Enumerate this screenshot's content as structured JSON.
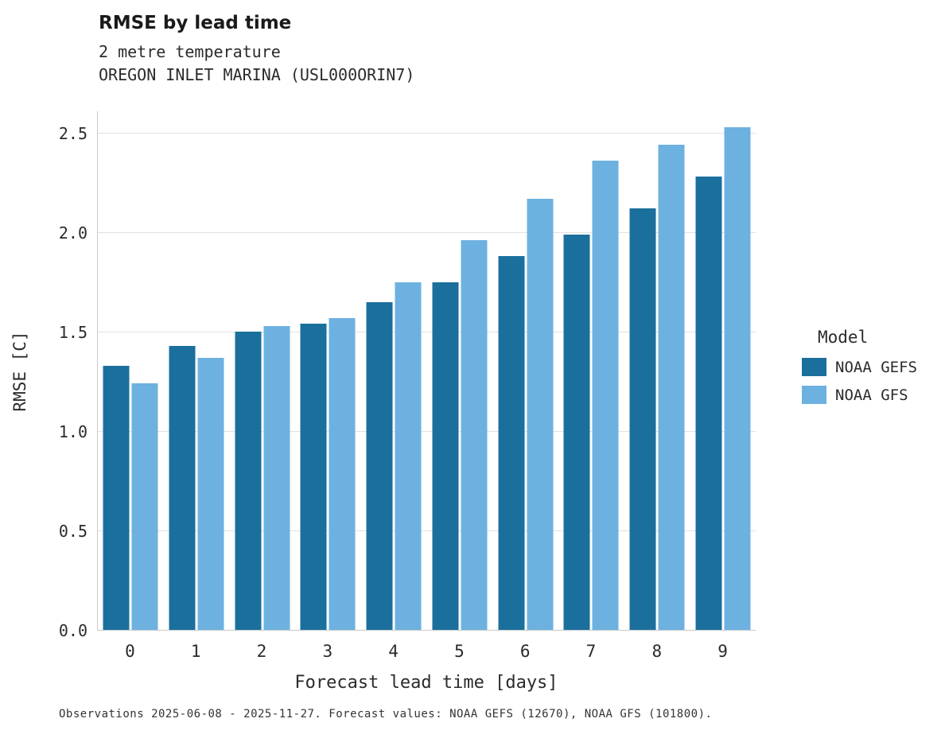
{
  "header": {
    "title": "RMSE by lead time",
    "subtitle1": "2 metre temperature",
    "subtitle2": "OREGON INLET MARINA (USL000ORIN7)"
  },
  "footer": {
    "caption": "Observations 2025-06-08 - 2025-11-27. Forecast values: NOAA GEFS (12670), NOAA GFS (101800)."
  },
  "legend": {
    "title": "Model"
  },
  "colors": {
    "gefs": "#1b6f9c",
    "gfs": "#6db1e0",
    "grid": "#e2e2e2",
    "axis": "#c9c9c9"
  },
  "chart_data": {
    "type": "bar",
    "title": "RMSE by lead time",
    "subtitle": "2 metre temperature — OREGON INLET MARINA (USL000ORIN7)",
    "xlabel": "Forecast lead time [days]",
    "ylabel": "RMSE [C]",
    "categories": [
      "0",
      "1",
      "2",
      "3",
      "4",
      "5",
      "6",
      "7",
      "8",
      "9"
    ],
    "yticks": [
      0.0,
      0.5,
      1.0,
      1.5,
      2.0,
      2.5
    ],
    "ytick_labels": [
      "0.0",
      "0.5",
      "1.0",
      "1.5",
      "2.0",
      "2.5"
    ],
    "ylim": [
      0,
      2.61
    ],
    "grid": true,
    "legend_position": "right",
    "legend_title": "Model",
    "series": [
      {
        "name": "NOAA GEFS",
        "color": "#1b6f9c",
        "values": [
          1.33,
          1.43,
          1.5,
          1.54,
          1.65,
          1.75,
          1.88,
          1.99,
          2.12,
          2.28
        ]
      },
      {
        "name": "NOAA GFS",
        "color": "#6db1e0",
        "values": [
          1.24,
          1.37,
          1.53,
          1.57,
          1.75,
          1.96,
          2.17,
          2.36,
          2.44,
          2.53
        ]
      }
    ]
  }
}
